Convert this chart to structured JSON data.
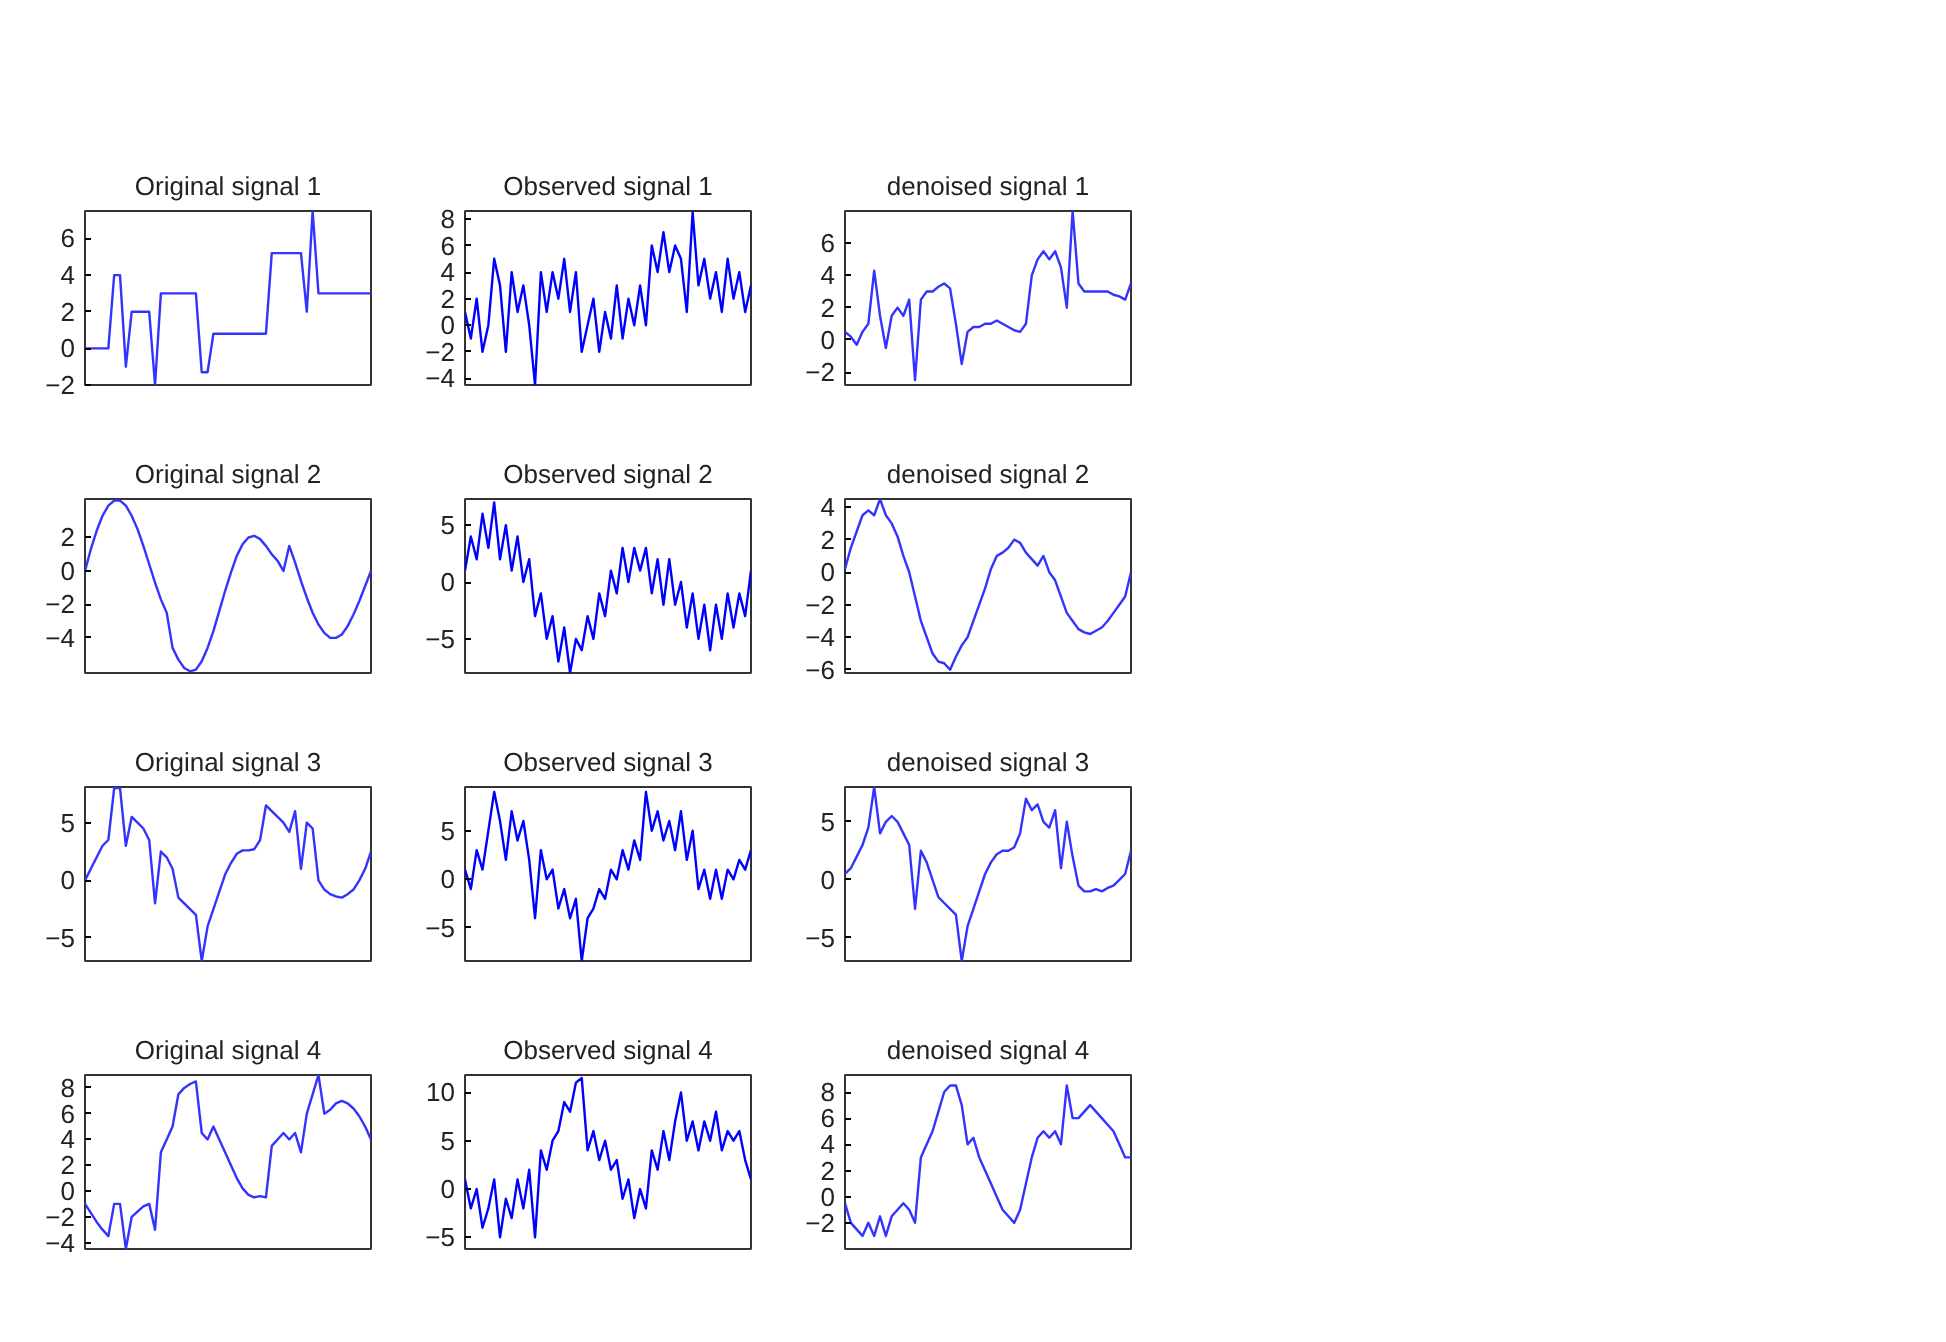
{
  "chart_data": [
    {
      "type": "line",
      "title": "Original signal 1",
      "categories": [
        null,
        null,
        null,
        null,
        null,
        null,
        null,
        null,
        null,
        null,
        null,
        null,
        null,
        null,
        null,
        null,
        null,
        null,
        null,
        null,
        null,
        null,
        null,
        null,
        null,
        null,
        null,
        null,
        null,
        null,
        null,
        null,
        null,
        null,
        null,
        null,
        null,
        null,
        null,
        null,
        null,
        null,
        null,
        null,
        null,
        null,
        null,
        null,
        null,
        null
      ],
      "values": [
        0,
        0,
        0,
        0,
        0,
        4,
        4,
        -1,
        2,
        2,
        2,
        2,
        -2,
        3,
        3,
        3,
        3,
        3,
        3,
        3,
        -1.3,
        -1.3,
        0.8,
        0.8,
        0.8,
        0.8,
        0.8,
        0.8,
        0.8,
        0.8,
        0.8,
        0.8,
        5.2,
        5.2,
        5.2,
        5.2,
        5.2,
        5.2,
        2,
        7.5,
        3,
        3,
        3,
        3,
        3,
        3,
        3,
        3,
        3,
        3
      ],
      "color": "#3333ff",
      "ylim": [
        -2,
        7.5
      ],
      "yticks": [
        -2,
        0,
        2,
        4,
        6
      ],
      "tick_labels": "y"
    },
    {
      "type": "line",
      "title": "Observed signal 1",
      "categories": [
        null,
        null,
        null,
        null,
        null,
        null,
        null,
        null,
        null,
        null,
        null,
        null,
        null,
        null,
        null,
        null,
        null,
        null,
        null,
        null,
        null,
        null,
        null,
        null,
        null,
        null,
        null,
        null,
        null,
        null,
        null,
        null,
        null,
        null,
        null,
        null,
        null,
        null,
        null,
        null,
        null,
        null,
        null,
        null,
        null,
        null,
        null,
        null,
        null,
        null
      ],
      "values": [
        1,
        -1,
        2,
        -2,
        0,
        5,
        3,
        -2,
        4,
        1,
        3,
        0,
        -4.5,
        4,
        1,
        4,
        2,
        5,
        1,
        4,
        -2,
        0,
        2,
        -2,
        1,
        -1,
        3,
        -1,
        2,
        0,
        3,
        0,
        6,
        4,
        7,
        4,
        6,
        5,
        1,
        8.5,
        3,
        5,
        2,
        4,
        1,
        5,
        2,
        4,
        1,
        3
      ],
      "color": "#0000ff",
      "ylim": [
        -4.5,
        8.6
      ],
      "yticks": [
        -4,
        -2,
        0,
        2,
        4,
        6,
        8
      ],
      "tick_labels": "y"
    },
    {
      "type": "line",
      "title": "denoised signal 1",
      "categories": [
        null,
        null,
        null,
        null,
        null,
        null,
        null,
        null,
        null,
        null,
        null,
        null,
        null,
        null,
        null,
        null,
        null,
        null,
        null,
        null,
        null,
        null,
        null,
        null,
        null,
        null,
        null,
        null,
        null,
        null,
        null,
        null,
        null,
        null,
        null,
        null,
        null,
        null,
        null,
        null,
        null,
        null,
        null,
        null,
        null,
        null,
        null,
        null,
        null,
        null
      ],
      "values": [
        0.5,
        0.2,
        -0.3,
        0.5,
        1,
        4.3,
        1.5,
        -0.5,
        1.5,
        2,
        1.5,
        2.5,
        -2.5,
        2.5,
        3,
        3,
        3.3,
        3.5,
        3.2,
        1,
        -1.5,
        0.5,
        0.8,
        0.8,
        1,
        1,
        1.2,
        1,
        0.8,
        0.6,
        0.5,
        1,
        4,
        5,
        5.5,
        5,
        5.5,
        4.5,
        2,
        8,
        3.5,
        3,
        3,
        3,
        3,
        3,
        2.8,
        2.7,
        2.5,
        3.5
      ],
      "color": "#3333ff",
      "ylim": [
        -2.8,
        8
      ],
      "yticks": [
        -2,
        0,
        2,
        4,
        6
      ],
      "tick_labels": "y"
    },
    {
      "type": "line",
      "title": "Original signal 2",
      "categories": [
        null,
        null,
        null,
        null,
        null,
        null,
        null,
        null,
        null,
        null,
        null,
        null,
        null,
        null,
        null,
        null,
        null,
        null,
        null,
        null,
        null,
        null,
        null,
        null,
        null,
        null,
        null,
        null,
        null,
        null,
        null,
        null,
        null,
        null,
        null,
        null,
        null,
        null,
        null,
        null,
        null,
        null,
        null,
        null,
        null,
        null,
        null,
        null,
        null,
        null
      ],
      "values": [
        0,
        1.3,
        2.4,
        3.3,
        3.9,
        4.2,
        4.2,
        3.9,
        3.3,
        2.5,
        1.5,
        0.4,
        -0.7,
        -1.7,
        -2.5,
        -4.6,
        -5.3,
        -5.8,
        -6,
        -5.9,
        -5.4,
        -4.6,
        -3.6,
        -2.4,
        -1.2,
        -0.1,
        0.9,
        1.6,
        2,
        2.1,
        1.9,
        1.5,
        1,
        0.6,
        0,
        1.5,
        0.5,
        -0.6,
        -1.6,
        -2.5,
        -3.2,
        -3.7,
        -4,
        -4,
        -3.8,
        -3.3,
        -2.6,
        -1.8,
        -0.9,
        0
      ],
      "color": "#3333ff",
      "ylim": [
        -6.1,
        4.3
      ],
      "yticks": [
        -4,
        -2,
        0,
        2
      ],
      "tick_labels": "y"
    },
    {
      "type": "line",
      "title": "Observed signal 2",
      "categories": [
        null,
        null,
        null,
        null,
        null,
        null,
        null,
        null,
        null,
        null,
        null,
        null,
        null,
        null,
        null,
        null,
        null,
        null,
        null,
        null,
        null,
        null,
        null,
        null,
        null,
        null,
        null,
        null,
        null,
        null,
        null,
        null,
        null,
        null,
        null,
        null,
        null,
        null,
        null,
        null,
        null,
        null,
        null,
        null,
        null,
        null,
        null,
        null,
        null,
        null
      ],
      "values": [
        1,
        4,
        2,
        6,
        3,
        7,
        2,
        5,
        1,
        4,
        0,
        2,
        -3,
        -1,
        -5,
        -3,
        -7,
        -4,
        -8,
        -5,
        -6,
        -3,
        -5,
        -1,
        -3,
        1,
        -1,
        3,
        0,
        3,
        1,
        3,
        -1,
        2,
        -2,
        2,
        -2,
        0,
        -4,
        -1,
        -5,
        -2,
        -6,
        -2,
        -5,
        -1,
        -4,
        -1,
        -3,
        1
      ],
      "color": "#0000ff",
      "ylim": [
        -8,
        7.3
      ],
      "yticks": [
        -5,
        0,
        5
      ],
      "tick_labels": "y"
    },
    {
      "type": "line",
      "title": "denoised signal 2",
      "categories": [
        null,
        null,
        null,
        null,
        null,
        null,
        null,
        null,
        null,
        null,
        null,
        null,
        null,
        null,
        null,
        null,
        null,
        null,
        null,
        null,
        null,
        null,
        null,
        null,
        null,
        null,
        null,
        null,
        null,
        null,
        null,
        null,
        null,
        null,
        null,
        null,
        null,
        null,
        null,
        null,
        null,
        null,
        null,
        null,
        null,
        null,
        null,
        null,
        null,
        null
      ],
      "values": [
        0.2,
        1.5,
        2.5,
        3.5,
        3.8,
        3.5,
        4.5,
        3.5,
        3,
        2.2,
        1,
        0,
        -1.5,
        -3,
        -4,
        -5,
        -5.5,
        -5.6,
        -6,
        -5.2,
        -4.5,
        -4,
        -3,
        -2,
        -1,
        0.2,
        1,
        1.2,
        1.5,
        2,
        1.8,
        1.2,
        0.8,
        0.4,
        1,
        0,
        -0.5,
        -1.5,
        -2.5,
        -3,
        -3.5,
        -3.7,
        -3.8,
        -3.6,
        -3.4,
        -3,
        -2.5,
        -2,
        -1.5,
        0
      ],
      "color": "#3333ff",
      "ylim": [
        -6.2,
        4.5
      ],
      "yticks": [
        -6,
        -4,
        -2,
        0,
        2,
        4
      ],
      "tick_labels": "y"
    },
    {
      "type": "line",
      "title": "Original signal 3",
      "categories": [
        null,
        null,
        null,
        null,
        null,
        null,
        null,
        null,
        null,
        null,
        null,
        null,
        null,
        null,
        null,
        null,
        null,
        null,
        null,
        null,
        null,
        null,
        null,
        null,
        null,
        null,
        null,
        null,
        null,
        null,
        null,
        null,
        null,
        null,
        null,
        null,
        null,
        null,
        null,
        null,
        null,
        null,
        null,
        null,
        null,
        null,
        null,
        null,
        null,
        null
      ],
      "values": [
        0,
        1,
        2,
        3,
        3.5,
        8,
        8,
        3,
        5.5,
        5,
        4.5,
        3.5,
        -2,
        2.5,
        2,
        1,
        -1.5,
        -2,
        -2.5,
        -3,
        -7,
        -4,
        -2.5,
        -1,
        0.5,
        1.5,
        2.3,
        2.6,
        2.6,
        2.7,
        3.5,
        6.5,
        6,
        5.5,
        5,
        4.2,
        6,
        1,
        5,
        4.5,
        0,
        -0.8,
        -1.2,
        -1.4,
        -1.5,
        -1.2,
        -0.8,
        0,
        1,
        2.5
      ],
      "color": "#3333ff",
      "ylim": [
        -7,
        8.1
      ],
      "yticks": [
        -5,
        0,
        5
      ],
      "tick_labels": "y"
    },
    {
      "type": "line",
      "title": "Observed signal 3",
      "categories": [
        null,
        null,
        null,
        null,
        null,
        null,
        null,
        null,
        null,
        null,
        null,
        null,
        null,
        null,
        null,
        null,
        null,
        null,
        null,
        null,
        null,
        null,
        null,
        null,
        null,
        null,
        null,
        null,
        null,
        null,
        null,
        null,
        null,
        null,
        null,
        null,
        null,
        null,
        null,
        null,
        null,
        null,
        null,
        null,
        null,
        null,
        null,
        null,
        null,
        null
      ],
      "values": [
        1,
        -1,
        3,
        1,
        5,
        9,
        6,
        2,
        7,
        4,
        6,
        2,
        -4,
        3,
        0,
        1,
        -3,
        -1,
        -4,
        -2,
        -8.4,
        -4,
        -3,
        -1,
        -2,
        1,
        0,
        3,
        1,
        4,
        2,
        9,
        5,
        7,
        4,
        6,
        3,
        7,
        2,
        5,
        -1,
        1,
        -2,
        1,
        -2,
        1,
        0,
        2,
        1,
        3
      ],
      "color": "#0000ff",
      "ylim": [
        -8.4,
        9.5
      ],
      "yticks": [
        -5,
        0,
        5
      ],
      "tick_labels": "y"
    },
    {
      "type": "line",
      "title": "denoised signal 3",
      "categories": [
        null,
        null,
        null,
        null,
        null,
        null,
        null,
        null,
        null,
        null,
        null,
        null,
        null,
        null,
        null,
        null,
        null,
        null,
        null,
        null,
        null,
        null,
        null,
        null,
        null,
        null,
        null,
        null,
        null,
        null,
        null,
        null,
        null,
        null,
        null,
        null,
        null,
        null,
        null,
        null,
        null,
        null,
        null,
        null,
        null,
        null,
        null,
        null,
        null,
        null
      ],
      "values": [
        0.5,
        1,
        2,
        3,
        4.5,
        8,
        4,
        5,
        5.5,
        5,
        4,
        3,
        -2.5,
        2.5,
        1.5,
        0,
        -1.5,
        -2,
        -2.5,
        -3,
        -7,
        -4,
        -2.5,
        -1,
        0.5,
        1.5,
        2.2,
        2.5,
        2.5,
        2.8,
        4,
        7,
        6,
        6.5,
        5,
        4.5,
        6,
        1,
        5,
        2,
        -0.5,
        -1,
        -1,
        -0.8,
        -1,
        -0.7,
        -0.5,
        0,
        0.5,
        2.5
      ],
      "color": "#3333ff",
      "ylim": [
        -7,
        8
      ],
      "yticks": [
        -5,
        0,
        5
      ],
      "tick_labels": "y"
    },
    {
      "type": "line",
      "title": "Original signal 4",
      "categories": [
        null,
        null,
        null,
        null,
        null,
        null,
        null,
        null,
        null,
        null,
        null,
        null,
        null,
        null,
        null,
        null,
        null,
        null,
        null,
        null,
        null,
        null,
        null,
        null,
        null,
        null,
        null,
        null,
        null,
        null,
        null,
        null,
        null,
        null,
        null,
        null,
        null,
        null,
        null,
        null,
        null,
        null,
        null,
        null,
        null,
        null,
        null,
        null,
        null,
        null
      ],
      "values": [
        -1,
        -1.7,
        -2.4,
        -3,
        -3.5,
        -1,
        -1,
        -4.5,
        -2,
        -1.6,
        -1.2,
        -1,
        -3,
        3,
        4,
        5,
        7.5,
        8,
        8.3,
        8.5,
        4.5,
        4,
        5,
        4,
        3,
        2,
        1,
        0.2,
        -0.3,
        -0.5,
        -0.4,
        -0.5,
        3.5,
        4,
        4.5,
        4,
        4.5,
        3,
        6,
        7.5,
        9,
        6,
        6.3,
        6.8,
        7,
        6.8,
        6.4,
        5.8,
        5,
        4
      ],
      "color": "#3333ff",
      "ylim": [
        -4.5,
        9
      ],
      "yticks": [
        -4,
        -2,
        0,
        2,
        4,
        6,
        8
      ],
      "tick_labels": "y"
    },
    {
      "type": "line",
      "title": "Observed signal 4",
      "categories": [
        null,
        null,
        null,
        null,
        null,
        null,
        null,
        null,
        null,
        null,
        null,
        null,
        null,
        null,
        null,
        null,
        null,
        null,
        null,
        null,
        null,
        null,
        null,
        null,
        null,
        null,
        null,
        null,
        null,
        null,
        null,
        null,
        null,
        null,
        null,
        null,
        null,
        null,
        null,
        null,
        null,
        null,
        null,
        null,
        null,
        null,
        null,
        null,
        null,
        null
      ],
      "values": [
        1,
        -2,
        0,
        -4,
        -2,
        1,
        -5,
        -1,
        -3,
        1,
        -2,
        2,
        -5,
        4,
        2,
        5,
        6,
        9,
        8,
        11,
        11.5,
        4,
        6,
        3,
        5,
        2,
        3,
        -1,
        1,
        -3,
        0,
        -2,
        4,
        2,
        6,
        3,
        7,
        10,
        5,
        7,
        4,
        7,
        5,
        8,
        4,
        6,
        5,
        6,
        3,
        1
      ],
      "color": "#0000ff",
      "ylim": [
        -6.2,
        11.8
      ],
      "yticks": [
        -5,
        0,
        5,
        10
      ],
      "tick_labels": "y"
    },
    {
      "type": "line",
      "title": "denoised signal 4",
      "categories": [
        null,
        null,
        null,
        null,
        null,
        null,
        null,
        null,
        null,
        null,
        null,
        null,
        null,
        null,
        null,
        null,
        null,
        null,
        null,
        null,
        null,
        null,
        null,
        null,
        null,
        null,
        null,
        null,
        null,
        null,
        null,
        null,
        null,
        null,
        null,
        null,
        null,
        null,
        null,
        null,
        null,
        null,
        null,
        null,
        null,
        null,
        null,
        null,
        null,
        null
      ],
      "values": [
        -0.5,
        -2,
        -2.5,
        -3,
        -2,
        -3,
        -1.5,
        -3,
        -1.5,
        -1,
        -0.5,
        -1,
        -2,
        3,
        4,
        5,
        6.5,
        8,
        8.5,
        8.5,
        7,
        4,
        4.5,
        3,
        2,
        1,
        0,
        -1,
        -1.5,
        -2,
        -1,
        1,
        3,
        4.5,
        5,
        4.5,
        5,
        4,
        8.5,
        6,
        6,
        6.5,
        7,
        6.5,
        6,
        5.5,
        5,
        4,
        3,
        3
      ],
      "color": "#3333ff",
      "ylim": [
        -4,
        9.3
      ],
      "yticks": [
        -2,
        0,
        2,
        4,
        6,
        8
      ],
      "tick_labels": "y"
    }
  ]
}
